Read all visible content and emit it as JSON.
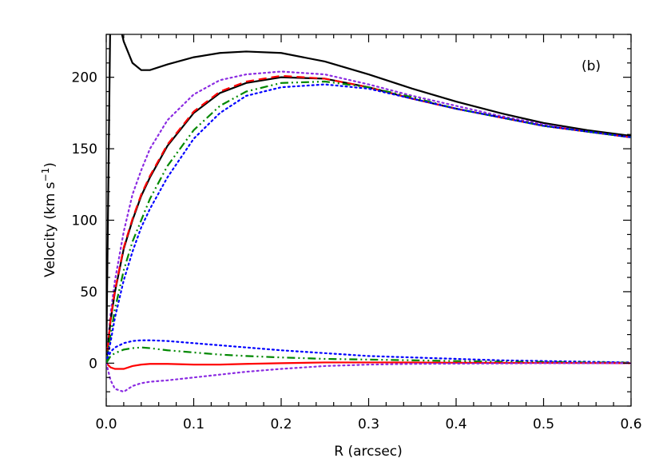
{
  "chart_data": {
    "type": "line",
    "annotation": "(b)",
    "xlabel": "R (arcsec)",
    "ylabel": [
      "Velocity (km s",
      "−1",
      ")"
    ],
    "xlim": [
      0,
      0.6
    ],
    "ylim": [
      -30,
      230
    ],
    "xticks": [
      {
        "value": 0,
        "label": "0.0"
      },
      0.1,
      0.2,
      0.3,
      0.4,
      0.5,
      0.6
    ],
    "yticks": [
      0,
      50,
      100,
      150,
      200
    ],
    "xminorticks": [
      0.02,
      0.04,
      0.06,
      0.08,
      0.12,
      0.14,
      0.16,
      0.18,
      0.22,
      0.24,
      0.26,
      0.28,
      0.32,
      0.34,
      0.36,
      0.38,
      0.42,
      0.44,
      0.46,
      0.48,
      0.52,
      0.54,
      0.56,
      0.58
    ],
    "yminorticks": [
      -30,
      -20,
      -10,
      10,
      20,
      30,
      40,
      60,
      70,
      80,
      90,
      110,
      120,
      130,
      140,
      160,
      170,
      180,
      190,
      210,
      220,
      230
    ],
    "x": [
      0,
      0.005,
      0.01,
      0.02,
      0.03,
      0.04,
      0.05,
      0.07,
      0.1,
      0.13,
      0.16,
      0.2,
      0.25,
      0.3,
      0.35,
      0.4,
      0.45,
      0.5,
      0.55,
      0.6
    ],
    "series": [
      {
        "color": "#000000",
        "linestyle": "solid",
        "values": [
          0,
          260,
          250,
          225,
          210,
          205,
          205,
          209,
          214,
          217,
          218,
          217,
          211,
          202,
          192,
          183,
          175,
          168,
          163,
          159
        ]
      },
      {
        "color": "#8b2be2",
        "linestyle": "dotted",
        "values": [
          0,
          35,
          58,
          92,
          118,
          135,
          150,
          170,
          188,
          198,
          202,
          204,
          202,
          195,
          187,
          180,
          173,
          167,
          162,
          158
        ]
      },
      {
        "color": "#000000",
        "linestyle": "solid",
        "values": [
          0,
          30,
          50,
          80,
          100,
          117,
          130,
          152,
          175,
          189,
          196,
          200,
          199,
          193,
          185,
          178,
          172,
          166,
          162,
          158
        ]
      },
      {
        "color": "#ff0000",
        "linestyle": "dashed",
        "values": [
          0,
          31,
          51,
          81,
          101,
          118,
          131,
          153,
          176,
          190,
          197,
          201,
          199,
          193,
          185,
          178,
          172,
          166,
          162,
          158
        ]
      },
      {
        "color": "#008800",
        "linestyle": "dashdot",
        "values": [
          0,
          20,
          38,
          65,
          85,
          100,
          115,
          138,
          163,
          180,
          190,
          196,
          197,
          193,
          186,
          178,
          172,
          166,
          162,
          158
        ]
      },
      {
        "color": "#0000ff",
        "linestyle": "dotted",
        "values": [
          0,
          15,
          32,
          58,
          78,
          95,
          108,
          130,
          157,
          175,
          187,
          193,
          195,
          192,
          185,
          178,
          172,
          166,
          162,
          158
        ]
      },
      {
        "color": "#0000ff",
        "linestyle": "dotted",
        "values": [
          0,
          8,
          11,
          14,
          15.5,
          16,
          16,
          15.5,
          14,
          12.5,
          11,
          9,
          7,
          5,
          4,
          3,
          2,
          1.5,
          1,
          0.5
        ]
      },
      {
        "color": "#008800",
        "linestyle": "dashdot",
        "values": [
          0,
          5,
          7,
          9.5,
          10.5,
          11,
          10.5,
          9,
          7.5,
          6,
          5,
          4,
          3,
          2.5,
          2,
          1.5,
          1,
          0.8,
          0.5,
          0.3
        ]
      },
      {
        "color": "#ff0000",
        "linestyle": "solid",
        "values": [
          0,
          -3,
          -4,
          -4,
          -2,
          -1,
          -0.5,
          -0.5,
          -1,
          -1,
          -0.5,
          0,
          0.5,
          0.5,
          0.5,
          0.3,
          0.2,
          0.2,
          0.1,
          0
        ]
      },
      {
        "color": "#8b2be2",
        "linestyle": "dotted",
        "values": [
          0,
          -12,
          -18,
          -20,
          -16,
          -14,
          -13,
          -12,
          -10,
          -8,
          -6,
          -4,
          -2,
          -1,
          -0.5,
          -0.3,
          -0.2,
          0,
          0,
          0
        ]
      }
    ]
  }
}
